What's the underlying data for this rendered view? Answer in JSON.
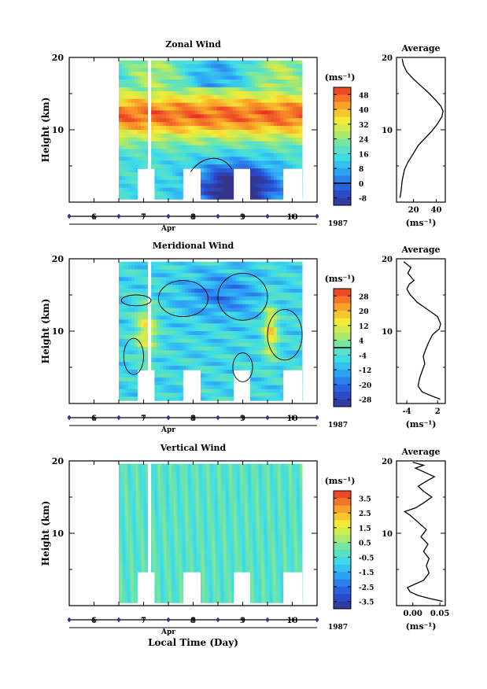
{
  "chart_data": [
    {
      "type": "heatmap",
      "title": "Zonal Wind",
      "ylabel": "Height (km)",
      "ylim": [
        0,
        20
      ],
      "y_ticks": [
        "10",
        "20"
      ],
      "xlim": [
        5.5,
        10.5
      ],
      "x_ticks": [
        "6",
        "7",
        "8",
        "9",
        "10"
      ],
      "x_month": "Apr",
      "year": "1987",
      "colorbar": {
        "unit": "(ms⁻¹)",
        "levels": [
          "-8",
          "0",
          "8",
          "16",
          "24",
          "32",
          "40",
          "48"
        ],
        "range": [
          -12,
          52
        ],
        "contour_level": "0"
      },
      "average_profile": {
        "title": "Average",
        "xlabel": "(ms⁻¹)",
        "x_ticks": [
          "20",
          "40"
        ],
        "xlim": [
          5,
          48
        ],
        "points": [
          [
            8,
            0.6
          ],
          [
            9,
            1.5
          ],
          [
            10,
            3
          ],
          [
            12,
            4.5
          ],
          [
            15,
            5.5
          ],
          [
            19,
            6.5
          ],
          [
            24,
            7.8
          ],
          [
            30,
            8.8
          ],
          [
            36,
            9.8
          ],
          [
            41,
            10.8
          ],
          [
            45,
            11.8
          ],
          [
            46,
            12.6
          ],
          [
            44,
            13.3
          ],
          [
            40,
            14
          ],
          [
            34,
            15
          ],
          [
            27,
            16
          ],
          [
            20,
            17
          ],
          [
            14,
            18
          ],
          [
            11,
            19
          ],
          [
            10,
            19.8
          ]
        ]
      }
    },
    {
      "type": "heatmap",
      "title": "Meridional Wind",
      "ylabel": "Height (km)",
      "ylim": [
        0,
        20
      ],
      "y_ticks": [
        "10",
        "20"
      ],
      "xlim": [
        5.5,
        10.5
      ],
      "x_ticks": [
        "6",
        "7",
        "8",
        "9",
        "10"
      ],
      "x_month": "Apr",
      "year": "1987",
      "colorbar": {
        "unit": "(ms⁻¹)",
        "levels": [
          "-28",
          "-20",
          "-12",
          "-4",
          "4",
          "12",
          "20",
          "28"
        ],
        "range": [
          -32,
          32
        ],
        "contour_level": "0"
      },
      "average_profile": {
        "title": "Average",
        "xlabel": "(ms⁻¹)",
        "x_ticks": [
          "-4",
          "2"
        ],
        "xlim": [
          -6,
          3.5
        ],
        "points": [
          [
            2.5,
            0.6
          ],
          [
            1,
            1
          ],
          [
            -1,
            1.6
          ],
          [
            -1.8,
            2.4
          ],
          [
            -1.5,
            3.5
          ],
          [
            -1,
            4.5
          ],
          [
            -0.5,
            5.5
          ],
          [
            -0.8,
            6.5
          ],
          [
            -0.3,
            7.5
          ],
          [
            0.3,
            8.5
          ],
          [
            1,
            9.5
          ],
          [
            2.3,
            10.3
          ],
          [
            2.6,
            11
          ],
          [
            2,
            12
          ],
          [
            0,
            13
          ],
          [
            -2,
            14
          ],
          [
            -3.3,
            15
          ],
          [
            -4,
            15.8
          ],
          [
            -3.5,
            16.5
          ],
          [
            -2.6,
            17
          ],
          [
            -3.8,
            18
          ],
          [
            -3.2,
            18.8
          ],
          [
            -4.6,
            19.6
          ]
        ]
      }
    },
    {
      "type": "heatmap",
      "title": "Vertical Wind",
      "xlabel": "Local Time (Day)",
      "ylabel": "Height (km)",
      "ylim": [
        0,
        20
      ],
      "y_ticks": [
        "10",
        "20"
      ],
      "xlim": [
        5.5,
        10.5
      ],
      "x_ticks": [
        "6",
        "7",
        "8",
        "9",
        "10"
      ],
      "x_month": "Apr",
      "year": "1987",
      "colorbar": {
        "unit": "(ms⁻¹)",
        "levels": [
          "-3.5",
          "-2.5",
          "-1.5",
          "-0.5",
          "0.5",
          "1.5",
          "2.5",
          "3.5"
        ],
        "range": [
          -4,
          4
        ]
      },
      "average_profile": {
        "title": "Average",
        "xlabel": "(ms⁻¹)",
        "x_ticks": [
          "0.00",
          "0.05"
        ],
        "xlim": [
          -0.03,
          0.06
        ],
        "points": [
          [
            0.055,
            0.6
          ],
          [
            0.03,
            1
          ],
          [
            0.01,
            1.4
          ],
          [
            -0.005,
            1.9
          ],
          [
            -0.01,
            2.5
          ],
          [
            0.005,
            3
          ],
          [
            0.02,
            3.5
          ],
          [
            0.03,
            4.5
          ],
          [
            0.025,
            5.5
          ],
          [
            0.03,
            6.5
          ],
          [
            0.02,
            7.5
          ],
          [
            0.028,
            8.5
          ],
          [
            0.015,
            9.5
          ],
          [
            0.025,
            10.5
          ],
          [
            0.01,
            11.5
          ],
          [
            -0.005,
            12.5
          ],
          [
            -0.015,
            13
          ],
          [
            0.005,
            13.5
          ],
          [
            0.02,
            14.2
          ],
          [
            0.035,
            15
          ],
          [
            0.02,
            15.8
          ],
          [
            0.01,
            16.5
          ],
          [
            0.025,
            17.2
          ],
          [
            0.04,
            17.8
          ],
          [
            0.02,
            18.5
          ],
          [
            0.005,
            19
          ],
          [
            0.02,
            19.4
          ],
          [
            0.0,
            19.8
          ]
        ]
      }
    }
  ]
}
